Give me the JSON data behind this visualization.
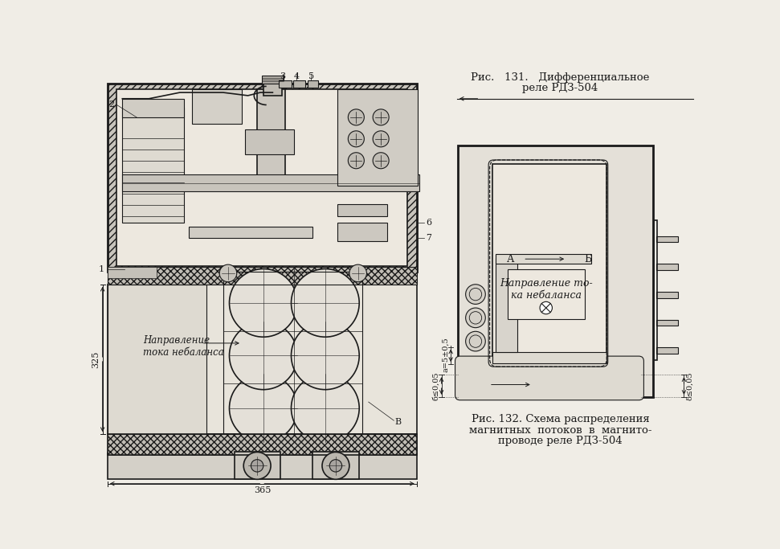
{
  "bg_color": "#f0ede6",
  "line_color": "#1a1a1a",
  "fig1_caption_line1": "Рис.   131.   Дифференциальное",
  "fig1_caption_line2": "реле РДЗ-504",
  "fig2_caption_line1": "Рис. 132. Схема распределения",
  "fig2_caption_line2": "магнитных  потоков  в  магнито-",
  "fig2_caption_line3": "проводе реле РДЗ-504",
  "label_napravlenie_toka_1": "Направление\nтока небаланса",
  "label_napravlenie_toka_2": "Направление то-\nка небаланса",
  "dim_325": "325",
  "dim_365": "365",
  "dim_a": "а=5±0,5",
  "dim_b1": "б≤0,05",
  "dim_b2": "δ≤0,05",
  "label_A": "А",
  "label_B": "Б",
  "label_2": "2",
  "label_1": "1",
  "label_V": "В"
}
